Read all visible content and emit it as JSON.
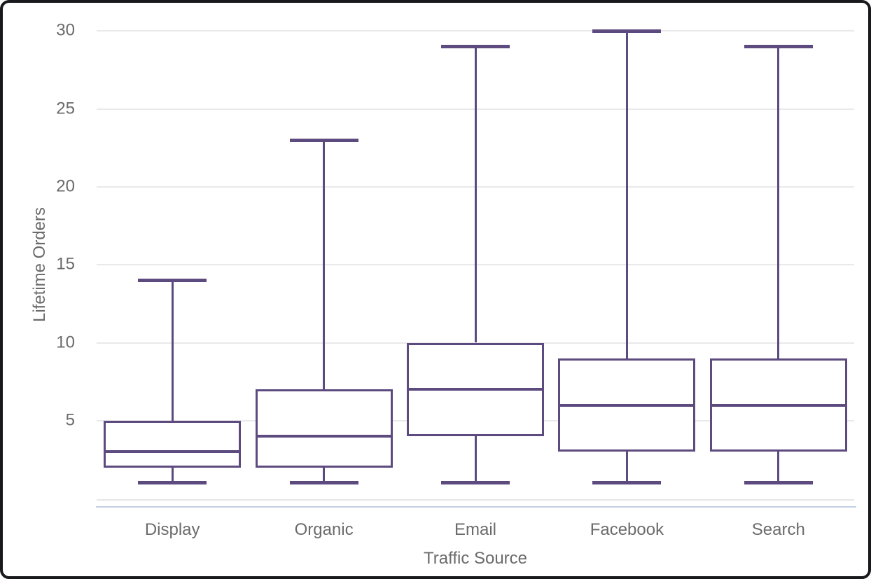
{
  "window": {
    "type": "chart-card"
  },
  "colors": {
    "box_stroke": "#5d4b80",
    "gridline": "#e9e9e9",
    "axis_line": "#e6e6e6",
    "panel_bottom": "#c5d1e6",
    "text": "#6b6b6b",
    "frame": "#17191c",
    "background": "#ffffff"
  },
  "chart_data": {
    "type": "boxplot",
    "title": "",
    "xlabel": "Traffic Source",
    "ylabel": "Lifetime Orders",
    "categories": [
      "Display",
      "Organic",
      "Email",
      "Facebook",
      "Search"
    ],
    "series": [
      {
        "name": "Display",
        "min": 1,
        "q1": 2,
        "median": 3,
        "q3": 5,
        "max": 14
      },
      {
        "name": "Organic",
        "min": 1,
        "q1": 2,
        "median": 4,
        "q3": 7,
        "max": 23
      },
      {
        "name": "Email",
        "min": 1,
        "q1": 4,
        "median": 7,
        "q3": 10,
        "max": 29
      },
      {
        "name": "Facebook",
        "min": 1,
        "q1": 3,
        "median": 6,
        "q3": 9,
        "max": 30
      },
      {
        "name": "Search",
        "min": 1,
        "q1": 3,
        "median": 6,
        "q3": 9,
        "max": 29
      }
    ],
    "yticks": [
      5,
      10,
      15,
      20,
      25,
      30
    ],
    "ylim": [
      0,
      30
    ],
    "grid": true,
    "legend": false
  }
}
